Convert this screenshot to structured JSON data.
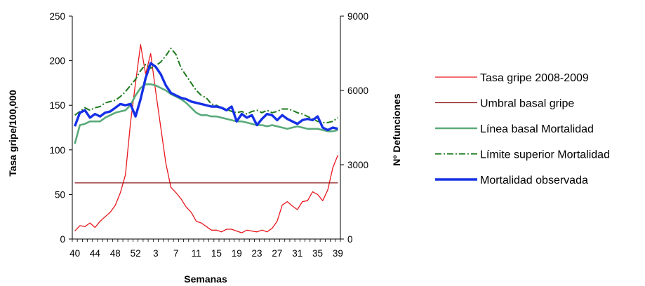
{
  "chart_data": {
    "type": "line",
    "xlabel": "Semanas",
    "ylabel": "Tasa gripe/100,000",
    "y2label": "Nº Defunciones",
    "ylim": [
      0,
      250
    ],
    "y2lim": [
      0,
      9000
    ],
    "yticks": [
      "0",
      "50",
      "100",
      "150",
      "200",
      "250"
    ],
    "y2ticks": [
      "0",
      "3000",
      "6000",
      "9000"
    ],
    "x": [
      "40",
      "41",
      "42",
      "43",
      "44",
      "45",
      "46",
      "47",
      "48",
      "49",
      "50",
      "51",
      "52",
      "53",
      "1",
      "2",
      "3",
      "4",
      "5",
      "6",
      "7",
      "8",
      "9",
      "10",
      "11",
      "12",
      "13",
      "14",
      "15",
      "16",
      "17",
      "18",
      "19",
      "20",
      "21",
      "22",
      "23",
      "24",
      "25",
      "26",
      "27",
      "28",
      "29",
      "30",
      "31",
      "32",
      "33",
      "34",
      "35",
      "36",
      "37",
      "38",
      "39"
    ],
    "xtick_labels": [
      "40",
      "44",
      "48",
      "52",
      "3",
      "7",
      "11",
      "15",
      "19",
      "23",
      "27",
      "31",
      "35",
      "39"
    ],
    "legend_position": "right",
    "series": [
      {
        "name": "Tasa gripe 2008-2009",
        "axis": "left",
        "color": "#e8181e",
        "width": 1.3,
        "dash": "",
        "values": [
          9,
          15,
          14,
          18,
          13,
          20,
          25,
          30,
          38,
          52,
          72,
          130,
          175,
          218,
          185,
          208,
          165,
          125,
          85,
          58,
          52,
          45,
          36,
          30,
          20,
          18,
          14,
          10,
          10,
          8,
          11,
          11,
          9,
          7,
          10,
          9,
          8,
          10,
          8,
          12,
          20,
          38,
          42,
          37,
          33,
          42,
          43,
          53,
          50,
          43,
          55,
          80,
          94
        ]
      },
      {
        "name": "Umbral basal gripe",
        "axis": "left",
        "color": "#8b1a1a",
        "width": 1.3,
        "dash": "",
        "values": [
          63,
          63,
          63,
          63,
          63,
          63,
          63,
          63,
          63,
          63,
          63,
          63,
          63,
          63,
          63,
          63,
          63,
          63,
          63,
          63,
          63,
          63,
          63,
          63,
          63,
          63,
          63,
          63,
          63,
          63,
          63,
          63,
          63,
          63,
          63,
          63,
          63,
          63,
          63,
          63,
          63,
          63,
          63,
          63,
          63,
          63,
          63,
          63,
          63,
          63,
          63,
          63,
          63
        ]
      },
      {
        "name": "Línea basal Mortalidad",
        "axis": "right",
        "color": "#5aaa7a",
        "width": 2.6,
        "dash": "",
        "values": [
          3850,
          4600,
          4650,
          4750,
          4750,
          4750,
          4900,
          5000,
          5100,
          5150,
          5200,
          5400,
          5800,
          6100,
          6250,
          6250,
          6200,
          6100,
          6000,
          5850,
          5750,
          5650,
          5500,
          5300,
          5100,
          5000,
          5000,
          4950,
          4950,
          4900,
          4850,
          4800,
          4750,
          4750,
          4700,
          4650,
          4600,
          4600,
          4550,
          4600,
          4550,
          4500,
          4450,
          4500,
          4550,
          4500,
          4450,
          4450,
          4450,
          4400,
          4350,
          4350,
          4400
        ]
      },
      {
        "name": "Límite superior Mortalidad",
        "axis": "right",
        "color": "#1d7a1d",
        "width": 2.0,
        "dash": "9,3,2,3",
        "values": [
          5000,
          5150,
          5300,
          5200,
          5300,
          5350,
          5500,
          5550,
          5600,
          5750,
          5950,
          6200,
          6450,
          6800,
          7050,
          6900,
          7000,
          7150,
          7400,
          7700,
          7450,
          6900,
          6600,
          6300,
          6000,
          5800,
          5700,
          5450,
          5400,
          5300,
          5250,
          5150,
          5100,
          5150,
          5050,
          5150,
          5200,
          5100,
          5200,
          5100,
          5150,
          5250,
          5250,
          5200,
          5100,
          5050,
          4950,
          4850,
          4750,
          4700,
          4700,
          4750,
          4900
        ]
      },
      {
        "name": "Mortalidad observada",
        "axis": "right",
        "color": "#1530e6",
        "width": 3.4,
        "dash": "",
        "values": [
          4550,
          5100,
          5200,
          4900,
          5050,
          4950,
          5100,
          5150,
          5300,
          5450,
          5400,
          5450,
          4950,
          5650,
          6500,
          7100,
          6950,
          6650,
          6200,
          5900,
          5800,
          5700,
          5650,
          5550,
          5500,
          5450,
          5400,
          5350,
          5350,
          5300,
          5200,
          5350,
          4750,
          5050,
          4900,
          5000,
          4600,
          4850,
          5050,
          5000,
          4800,
          5000,
          4850,
          4750,
          4650,
          4800,
          4850,
          4800,
          4950,
          4500,
          4400,
          4500,
          4450
        ]
      }
    ]
  }
}
